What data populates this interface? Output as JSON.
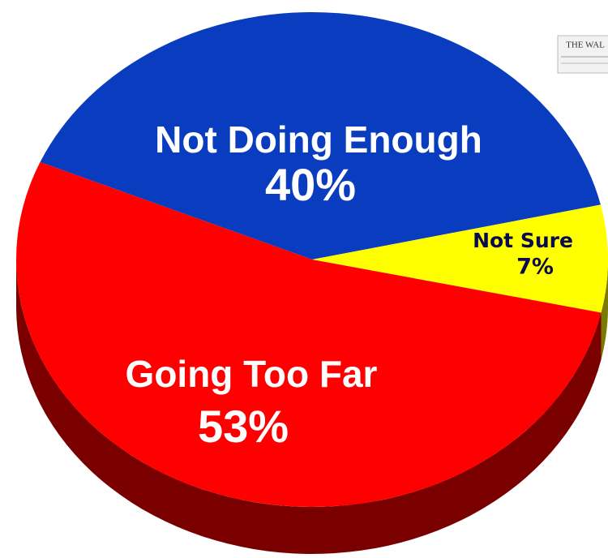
{
  "chart_data": {
    "type": "pie",
    "categories": [
      "Not Doing Enough",
      "Not Sure",
      "Going Too Far"
    ],
    "values": [
      40,
      7,
      53
    ],
    "value_labels": [
      "40%",
      "7%",
      "53%"
    ],
    "colors": [
      "#0a3cc0",
      "#ffff00",
      "#ff0000"
    ],
    "source_logo": "THE WAL"
  }
}
